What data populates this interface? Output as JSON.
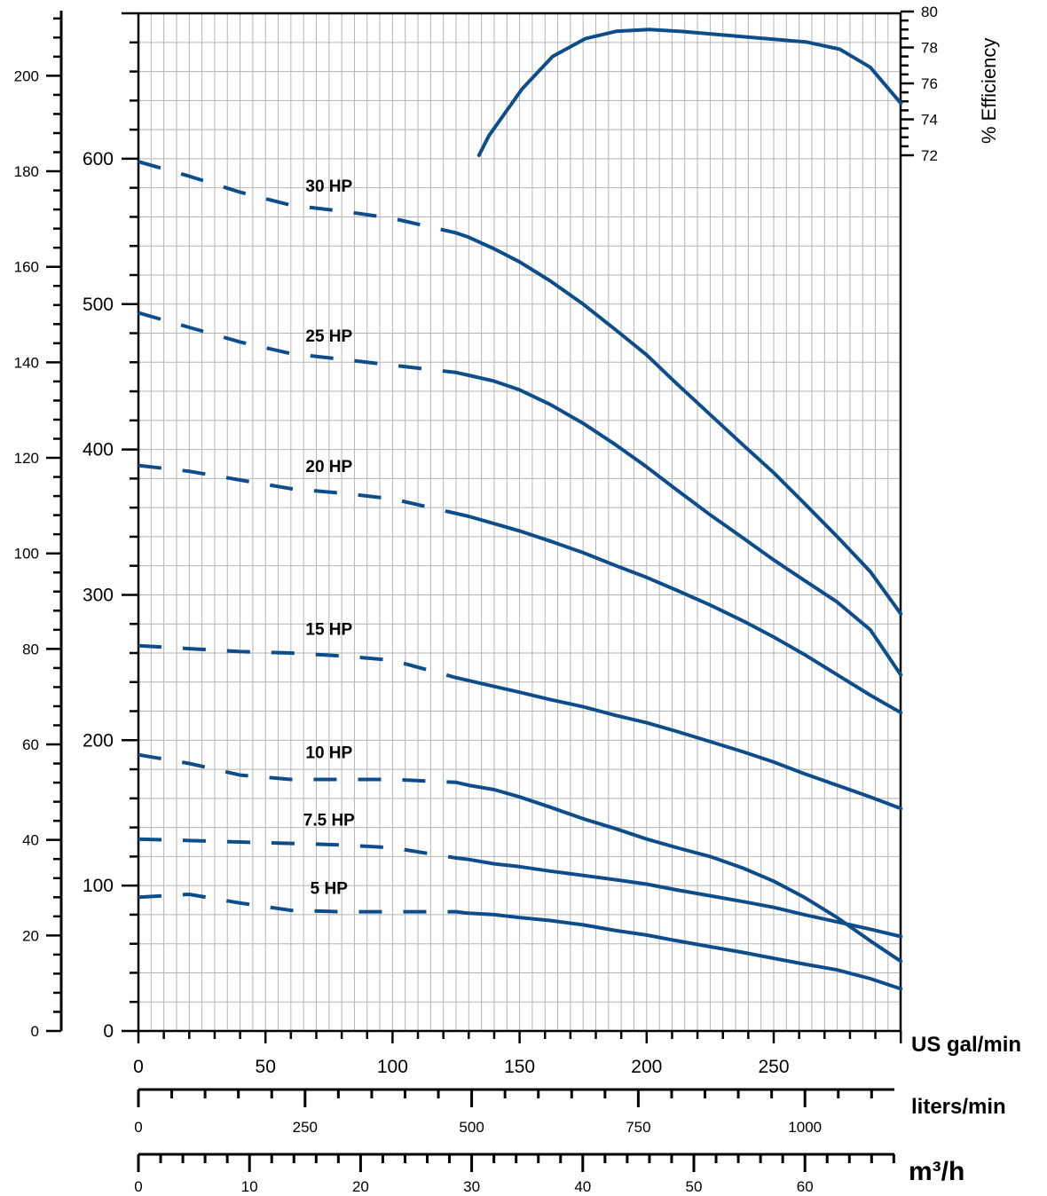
{
  "chart_data": {
    "type": "line",
    "title": "",
    "x_unit_label": "US gal/min",
    "x_ticks": [
      "0",
      "50",
      "100",
      "150",
      "200",
      "250"
    ],
    "xlim": [
      0,
      300
    ],
    "liters_unit_label": "liters/min",
    "liters_ticks": [
      "0",
      "250",
      "500",
      "750",
      "1000"
    ],
    "m3h_unit_label": "m³/h",
    "m3h_ticks": [
      "0",
      "10",
      "20",
      "30",
      "40",
      "50",
      "60"
    ],
    "head_ft_ticks": [
      "100",
      "200",
      "300",
      "400",
      "500",
      "600"
    ],
    "head_ft_lim": [
      0,
      660
    ],
    "head_m_ticks": [
      "0",
      "20",
      "40",
      "60",
      "80",
      "100",
      "120",
      "140",
      "160",
      "180",
      "200"
    ],
    "head_m_lim": [
      0,
      200
    ],
    "efficiency_label": "% Efficiency",
    "efficiency_ticks": [
      "72",
      "74",
      "76",
      "78",
      "80"
    ],
    "grid": true,
    "line_color": "#0d4d8c",
    "series": [
      {
        "name": "30 HP",
        "dashed_x": [
          0,
          125
        ],
        "x": [
          0,
          20,
          40,
          60,
          80,
          100,
          125,
          130,
          140,
          150,
          162,
          175,
          188,
          200,
          212,
          225,
          238,
          250,
          262,
          275,
          288,
          300
        ],
        "y": [
          598,
          588,
          577,
          568,
          564,
          559,
          549,
          546,
          538,
          529,
          516,
          500,
          482,
          465,
          445,
          424,
          403,
          384,
          363,
          340,
          316,
          287
        ]
      },
      {
        "name": "25 HP",
        "dashed_x": [
          0,
          125
        ],
        "x": [
          0,
          20,
          40,
          60,
          80,
          100,
          125,
          130,
          140,
          150,
          162,
          175,
          188,
          200,
          212,
          225,
          238,
          250,
          262,
          275,
          288,
          300
        ],
        "y": [
          494,
          484,
          474,
          466,
          462,
          458,
          453,
          451,
          447,
          441,
          431,
          418,
          403,
          388,
          372,
          355,
          339,
          324,
          310,
          295,
          276,
          245
        ]
      },
      {
        "name": "20 HP",
        "dashed_x": [
          0,
          125
        ],
        "x": [
          0,
          20,
          40,
          60,
          80,
          100,
          125,
          130,
          140,
          150,
          162,
          175,
          188,
          200,
          212,
          225,
          238,
          250,
          262,
          275,
          288,
          300
        ],
        "y": [
          389,
          385,
          379,
          373,
          370,
          366,
          356,
          354,
          349,
          344,
          337,
          329,
          320,
          312,
          303,
          293,
          282,
          271,
          259,
          245,
          231,
          219
        ]
      },
      {
        "name": "15 HP",
        "dashed_x": [
          0,
          125
        ],
        "x": [
          0,
          20,
          40,
          60,
          80,
          100,
          125,
          130,
          140,
          150,
          162,
          175,
          188,
          200,
          212,
          225,
          238,
          250,
          262,
          275,
          288,
          300
        ],
        "y": [
          265,
          263,
          261,
          260,
          258,
          255,
          243,
          241,
          237,
          233,
          228,
          223,
          217,
          212,
          206,
          199,
          192,
          185,
          177,
          169,
          161,
          153
        ]
      },
      {
        "name": "10 HP",
        "dashed_x": [
          0,
          125
        ],
        "x": [
          0,
          20,
          40,
          60,
          80,
          100,
          125,
          130,
          140,
          150,
          162,
          175,
          188,
          200,
          212,
          225,
          238,
          250,
          262,
          275,
          288,
          300
        ],
        "y": [
          190,
          184,
          176,
          173,
          173,
          173,
          171,
          169,
          166,
          161,
          154,
          146,
          139,
          132,
          126,
          120,
          112,
          103,
          92,
          78,
          62,
          48
        ]
      },
      {
        "name": "7.5 HP",
        "dashed_x": [
          0,
          125
        ],
        "x": [
          0,
          20,
          40,
          60,
          80,
          100,
          125,
          130,
          140,
          150,
          162,
          175,
          188,
          200,
          212,
          225,
          238,
          250,
          262,
          275,
          288,
          300
        ],
        "y": [
          132,
          131,
          130,
          129,
          128,
          126,
          119,
          118,
          115,
          113,
          110,
          107,
          104,
          101,
          97,
          93,
          89,
          85,
          80,
          75,
          70,
          65
        ]
      },
      {
        "name": "5 HP",
        "dashed_x": [
          0,
          125
        ],
        "x": [
          0,
          20,
          40,
          60,
          80,
          100,
          125,
          130,
          140,
          150,
          162,
          175,
          188,
          200,
          212,
          225,
          238,
          250,
          262,
          275,
          288,
          300
        ],
        "y": [
          92,
          94,
          88,
          83,
          82,
          82,
          82,
          81,
          80,
          78,
          76,
          73,
          69,
          66,
          62,
          58,
          54,
          50,
          46,
          42,
          36,
          29
        ]
      }
    ],
    "efficiency_curve": {
      "name": "% Efficiency",
      "x": [
        134,
        138,
        145,
        151,
        163,
        176,
        188,
        201,
        213,
        238,
        263,
        276,
        288,
        300
      ],
      "y": [
        72.0,
        73.1,
        74.5,
        75.7,
        77.5,
        78.5,
        78.9,
        79.0,
        78.9,
        78.6,
        78.3,
        77.9,
        76.9,
        74.9
      ]
    }
  }
}
